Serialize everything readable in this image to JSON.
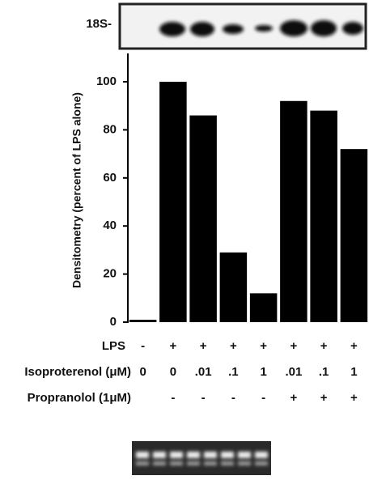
{
  "chart_data": {
    "type": "bar",
    "gel_label": "18S-",
    "y_label": "Densitometry (percent of LPS alone)",
    "values": [
      1,
      100,
      86,
      29,
      12,
      92,
      88,
      72
    ],
    "color": "#000000",
    "ylim": [
      0,
      110
    ],
    "yticks": [
      0,
      20,
      40,
      60,
      80,
      100
    ],
    "grid": false,
    "treatment_rows": [
      {
        "label": "LPS",
        "values": [
          "-",
          "+",
          "+",
          "+",
          "+",
          "+",
          "+",
          "+"
        ]
      },
      {
        "label": "Isoproterenol (μM)",
        "values": [
          "0",
          "0",
          ".01",
          ".1",
          "1",
          ".01",
          ".1",
          "1"
        ]
      },
      {
        "label": "Propranolol (1μM)",
        "values": [
          null,
          "-",
          "-",
          "-",
          "-",
          "+",
          "+",
          "+"
        ]
      }
    ]
  }
}
